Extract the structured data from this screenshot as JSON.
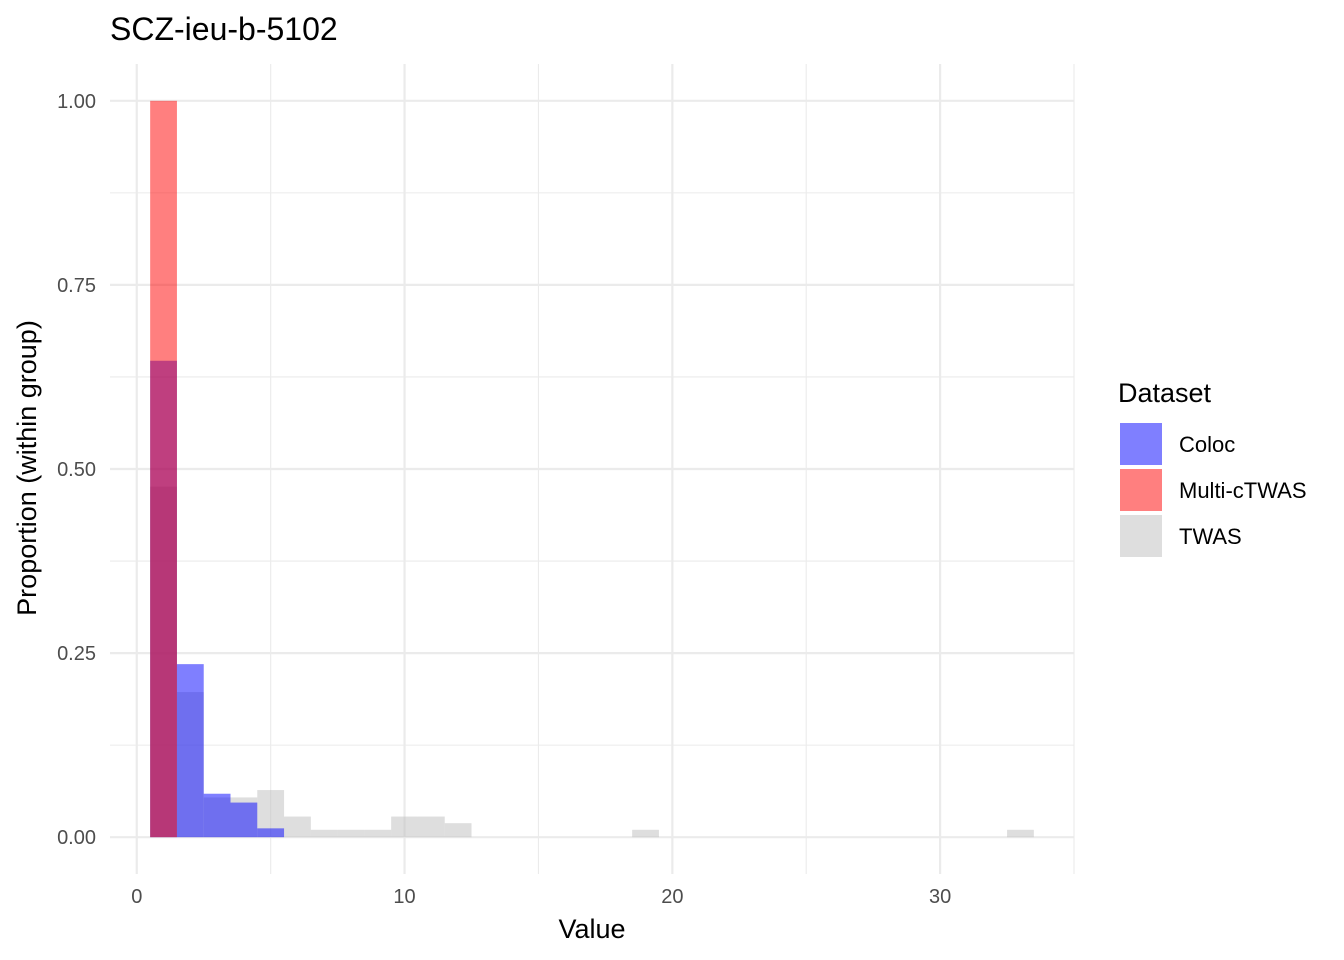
{
  "chart_data": {
    "type": "bar",
    "title": "SCZ-ieu-b-5102",
    "xlabel": "Value",
    "ylabel": "Proportion (within group)",
    "xlim": [
      -1,
      35
    ],
    "ylim": [
      -0.05,
      1.05
    ],
    "xticks": [
      0,
      10,
      20,
      30
    ],
    "xtick_labels": [
      "0",
      "10",
      "20",
      "30"
    ],
    "yticks": [
      0,
      0.25,
      0.5,
      0.75,
      1.0
    ],
    "ytick_labels": [
      "0.00",
      "0.25",
      "0.50",
      "0.75",
      "1.00"
    ],
    "bin_width": 1,
    "grid": true,
    "legend": {
      "title": "Dataset",
      "position": "right",
      "entries": [
        {
          "label": "Coloc",
          "color": "#0000ff"
        },
        {
          "label": "Multi-cTWAS",
          "color": "#ff0000"
        },
        {
          "label": "TWAS",
          "color": "#bebebe"
        }
      ]
    },
    "opacity": 0.5,
    "series": [
      {
        "name": "TWAS",
        "color": "#bebebe",
        "bins": [
          {
            "x": 1,
            "y": 0.476
          },
          {
            "x": 2,
            "y": 0.197
          },
          {
            "x": 3,
            "y": 0.054
          },
          {
            "x": 4,
            "y": 0.054
          },
          {
            "x": 5,
            "y": 0.064
          },
          {
            "x": 6,
            "y": 0.028
          },
          {
            "x": 7,
            "y": 0.01
          },
          {
            "x": 8,
            "y": 0.01
          },
          {
            "x": 9,
            "y": 0.01
          },
          {
            "x": 10,
            "y": 0.028
          },
          {
            "x": 11,
            "y": 0.028
          },
          {
            "x": 12,
            "y": 0.019
          },
          {
            "x": 19,
            "y": 0.01
          },
          {
            "x": 33,
            "y": 0.01
          }
        ]
      },
      {
        "name": "Coloc",
        "color": "#0000ff",
        "bins": [
          {
            "x": 1,
            "y": 0.647
          },
          {
            "x": 2,
            "y": 0.235
          },
          {
            "x": 3,
            "y": 0.059
          },
          {
            "x": 4,
            "y": 0.047
          },
          {
            "x": 5,
            "y": 0.012
          }
        ]
      },
      {
        "name": "Multi-cTWAS",
        "color": "#ff0000",
        "bins": [
          {
            "x": 1,
            "y": 1.0
          }
        ]
      }
    ]
  }
}
